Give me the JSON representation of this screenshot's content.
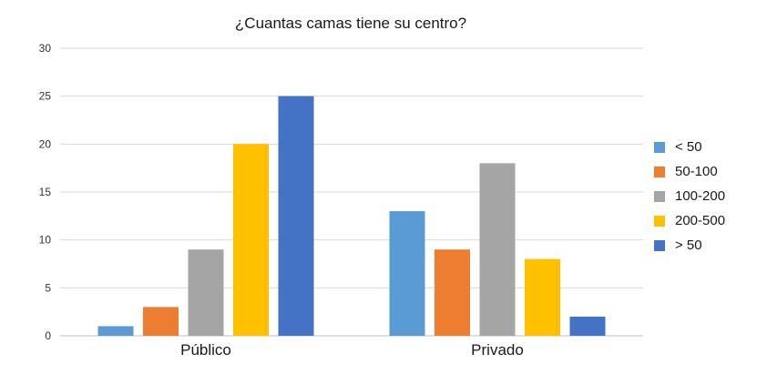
{
  "chart_data": {
    "type": "bar",
    "title": "¿Cuantas camas tiene su centro?",
    "categories": [
      "Público",
      "Privado"
    ],
    "series": [
      {
        "name": "< 50",
        "color": "#5B9BD5",
        "values": [
          1,
          13
        ]
      },
      {
        "name": "50-100",
        "color": "#ED7D31",
        "values": [
          3,
          9
        ]
      },
      {
        "name": "100-200",
        "color": "#A5A5A5",
        "values": [
          9,
          18
        ]
      },
      {
        "name": "200-500",
        "color": "#FFC000",
        "values": [
          20,
          8
        ]
      },
      {
        "name": "> 50",
        "color": "#4472C4",
        "values": [
          25,
          2
        ]
      }
    ],
    "ylim": [
      0,
      30
    ],
    "yticks": [
      0,
      5,
      10,
      15,
      20,
      25,
      30
    ],
    "grid": true,
    "legend_position": "right"
  }
}
